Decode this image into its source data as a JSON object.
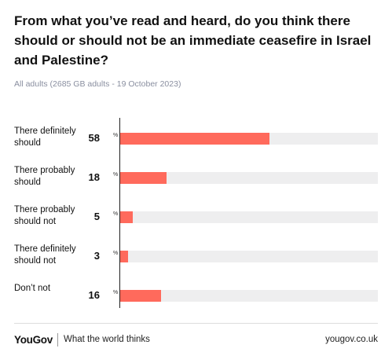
{
  "header": {
    "title": "From what you’ve read and heard, do you think there should or should not be an immediate ceasefire in Israel and Palestine?",
    "subtitle": "All adults (2685 GB adults - 19 October 2023)"
  },
  "chart_data": {
    "type": "bar",
    "orientation": "horizontal",
    "categories": [
      "There definitely should",
      "There probably should",
      "There probably should not",
      "There definitely should not",
      "Don’t not"
    ],
    "values": [
      58,
      18,
      5,
      3,
      16
    ],
    "value_labels": [
      "58",
      "18",
      "5",
      "3",
      "16"
    ],
    "unit": "%",
    "xlim": [
      0,
      100
    ],
    "bar_color": "#ff6a5c",
    "track_color": "#eeeeef",
    "title": "From what you’ve read and heard, do you think there should or should not be an immediate ceasefire in Israel and Palestine?",
    "subtitle": "All adults (2685 GB adults - 19 October 2023)",
    "grid": false
  },
  "footer": {
    "brand": "YouGov",
    "tagline": "What the world thinks",
    "site": "yougov.co.uk"
  }
}
